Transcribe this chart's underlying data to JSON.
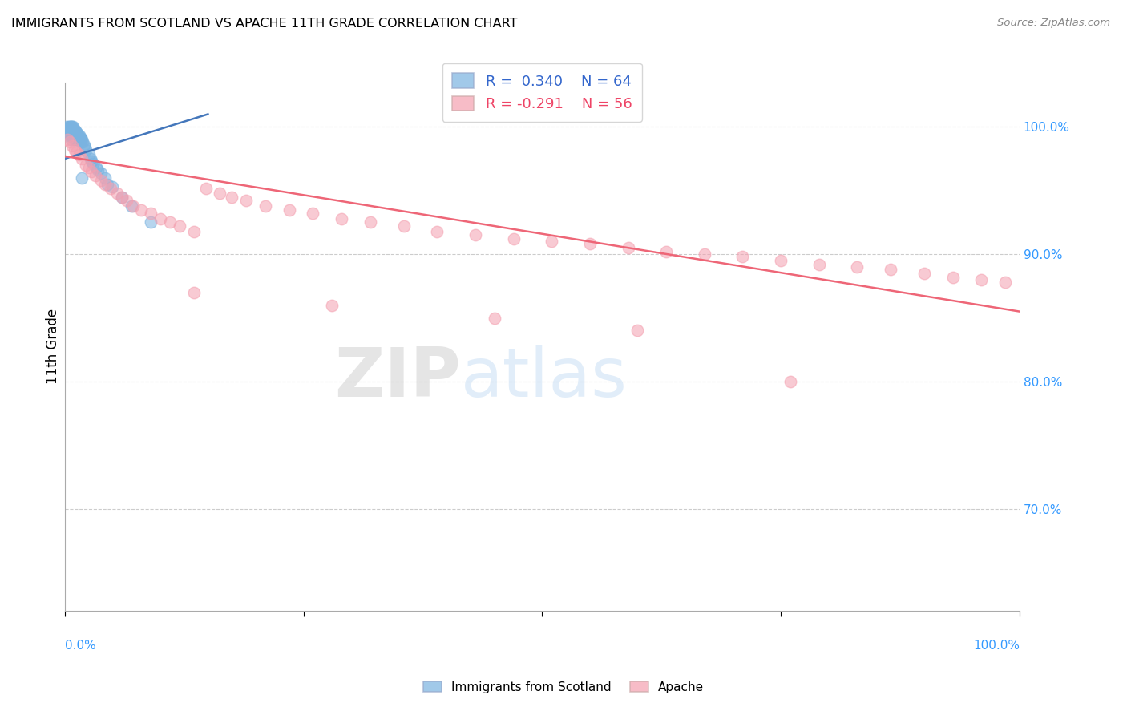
{
  "title": "IMMIGRANTS FROM SCOTLAND VS APACHE 11TH GRADE CORRELATION CHART",
  "source": "Source: ZipAtlas.com",
  "ylabel": "11th Grade",
  "xlim": [
    0.0,
    1.0
  ],
  "ylim": [
    0.62,
    1.035
  ],
  "ytick_labels": [
    "70.0%",
    "80.0%",
    "90.0%",
    "100.0%"
  ],
  "ytick_values": [
    0.7,
    0.8,
    0.9,
    1.0
  ],
  "grid_color": "#cccccc",
  "background_color": "#ffffff",
  "blue_color": "#7ab3e0",
  "pink_color": "#f4a0b0",
  "blue_line_color": "#4477bb",
  "pink_line_color": "#ee6677",
  "legend_R_blue": "R =  0.340",
  "legend_N_blue": "N = 64",
  "legend_R_pink": "R = -0.291",
  "legend_N_pink": "N = 56",
  "watermark_zip": "ZIP",
  "watermark_atlas": "atlas",
  "blue_scatter_x": [
    0.002,
    0.003,
    0.003,
    0.004,
    0.004,
    0.004,
    0.005,
    0.005,
    0.005,
    0.005,
    0.006,
    0.006,
    0.006,
    0.006,
    0.007,
    0.007,
    0.007,
    0.007,
    0.007,
    0.008,
    0.008,
    0.008,
    0.008,
    0.009,
    0.009,
    0.009,
    0.01,
    0.01,
    0.01,
    0.01,
    0.011,
    0.011,
    0.011,
    0.012,
    0.012,
    0.012,
    0.013,
    0.013,
    0.014,
    0.014,
    0.015,
    0.015,
    0.016,
    0.017,
    0.017,
    0.018,
    0.019,
    0.02,
    0.021,
    0.022,
    0.025,
    0.027,
    0.03,
    0.033,
    0.038,
    0.042,
    0.05,
    0.06,
    0.07,
    0.09,
    0.035,
    0.028,
    0.018,
    0.045
  ],
  "blue_scatter_y": [
    1.0,
    0.998,
    0.996,
    1.0,
    0.998,
    0.995,
    1.0,
    0.998,
    0.996,
    0.993,
    1.0,
    0.998,
    0.996,
    0.993,
    1.0,
    0.998,
    0.996,
    0.993,
    0.99,
    1.0,
    0.998,
    0.995,
    0.992,
    1.0,
    0.997,
    0.994,
    0.998,
    0.996,
    0.993,
    0.99,
    0.997,
    0.994,
    0.991,
    0.996,
    0.993,
    0.99,
    0.995,
    0.992,
    0.994,
    0.991,
    0.993,
    0.99,
    0.992,
    0.991,
    0.988,
    0.99,
    0.988,
    0.986,
    0.984,
    0.982,
    0.978,
    0.975,
    0.971,
    0.968,
    0.964,
    0.96,
    0.953,
    0.945,
    0.938,
    0.925,
    0.966,
    0.973,
    0.96,
    0.955
  ],
  "pink_scatter_x": [
    0.003,
    0.005,
    0.008,
    0.01,
    0.012,
    0.015,
    0.018,
    0.022,
    0.025,
    0.028,
    0.032,
    0.038,
    0.042,
    0.048,
    0.055,
    0.06,
    0.065,
    0.072,
    0.08,
    0.09,
    0.1,
    0.11,
    0.12,
    0.135,
    0.148,
    0.162,
    0.175,
    0.19,
    0.21,
    0.235,
    0.26,
    0.29,
    0.32,
    0.355,
    0.39,
    0.43,
    0.47,
    0.51,
    0.55,
    0.59,
    0.63,
    0.67,
    0.71,
    0.75,
    0.79,
    0.83,
    0.865,
    0.9,
    0.93,
    0.96,
    0.985,
    0.135,
    0.28,
    0.45,
    0.6,
    0.76
  ],
  "pink_scatter_y": [
    0.99,
    0.988,
    0.985,
    0.982,
    0.98,
    0.978,
    0.975,
    0.97,
    0.968,
    0.965,
    0.962,
    0.958,
    0.955,
    0.952,
    0.948,
    0.945,
    0.942,
    0.938,
    0.935,
    0.932,
    0.928,
    0.925,
    0.922,
    0.918,
    0.952,
    0.948,
    0.945,
    0.942,
    0.938,
    0.935,
    0.932,
    0.928,
    0.925,
    0.922,
    0.918,
    0.915,
    0.912,
    0.91,
    0.908,
    0.905,
    0.902,
    0.9,
    0.898,
    0.895,
    0.892,
    0.89,
    0.888,
    0.885,
    0.882,
    0.88,
    0.878,
    0.87,
    0.86,
    0.85,
    0.84,
    0.8
  ],
  "blue_line_x": [
    0.0,
    0.15
  ],
  "blue_line_y": [
    0.975,
    1.01
  ],
  "pink_line_x": [
    0.0,
    1.0
  ],
  "pink_line_y": [
    0.977,
    0.855
  ]
}
